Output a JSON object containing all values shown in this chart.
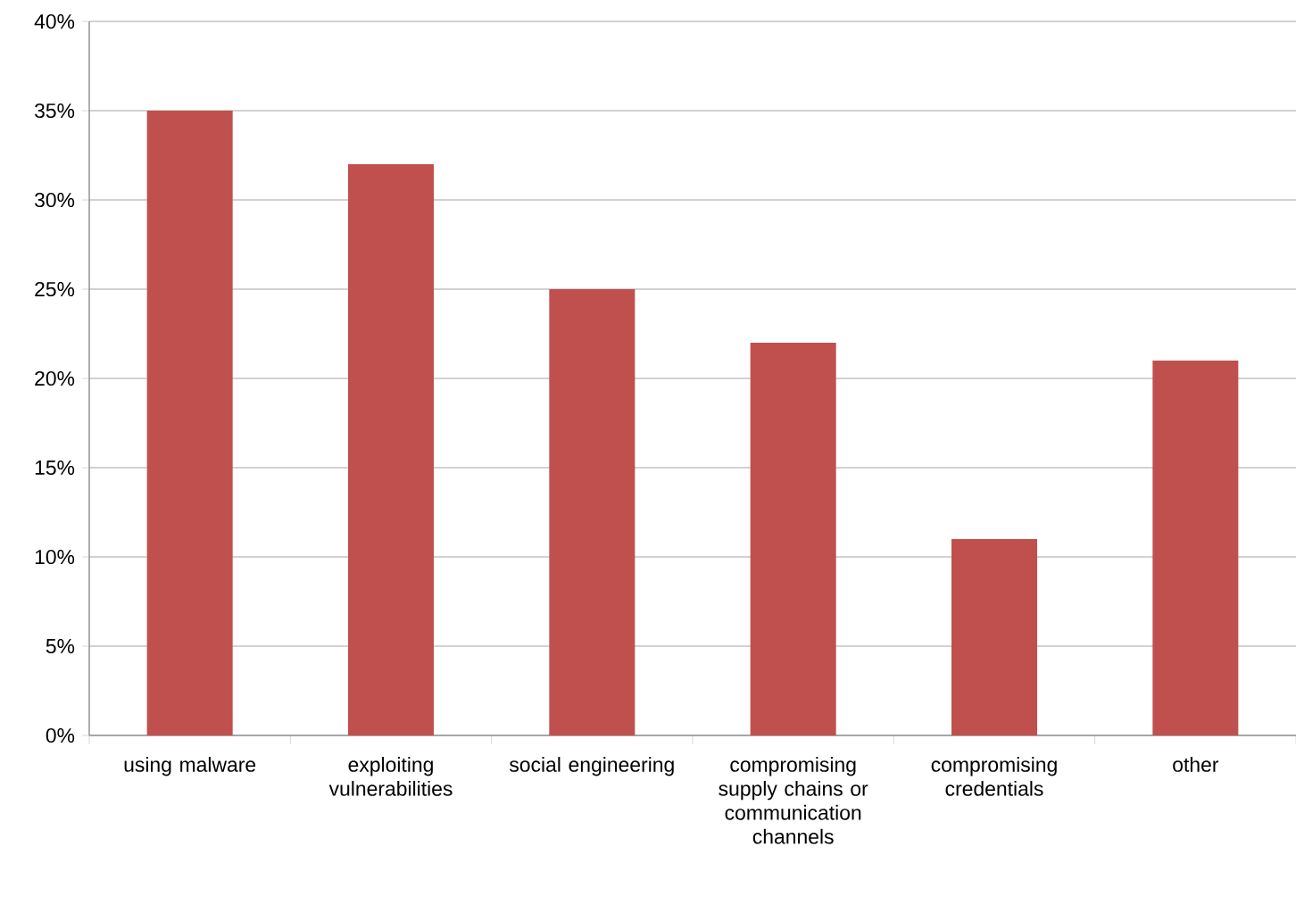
{
  "chart_data": {
    "type": "bar",
    "categories": [
      "using malware",
      "exploiting vulnerabilities",
      "social engineering",
      "compromising supply chains or communication channels",
      "compromising credentials",
      "other"
    ],
    "values": [
      35,
      32,
      25,
      22,
      11,
      21
    ],
    "color": "#c0504d",
    "ylim": [
      0,
      40
    ],
    "yticks": [
      {
        "value": 0,
        "label": "0%"
      },
      {
        "value": 5,
        "label": "5%"
      },
      {
        "value": 10,
        "label": "10%"
      },
      {
        "value": 15,
        "label": "15%"
      },
      {
        "value": 20,
        "label": "20%"
      },
      {
        "value": 25,
        "label": "25%"
      },
      {
        "value": 30,
        "label": "30%"
      },
      {
        "value": 35,
        "label": "35%"
      },
      {
        "value": 40,
        "label": "40%"
      }
    ],
    "grid": "y"
  }
}
